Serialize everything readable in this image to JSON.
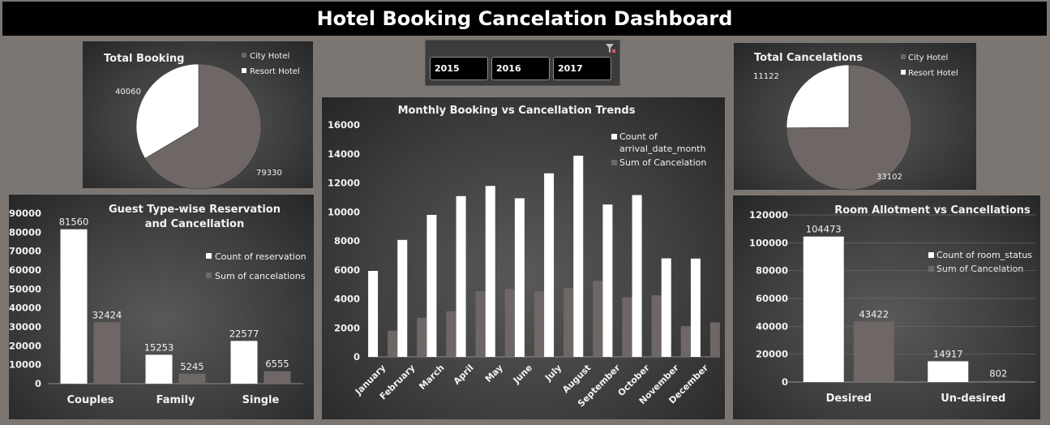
{
  "title": "Hotel Booking Cancelation Dashboard",
  "slicer": {
    "options": [
      "2015",
      "2016",
      "2017"
    ],
    "icon": "clear-filter-icon"
  },
  "colors": {
    "white": "#ffffff",
    "gray": "#6f6766",
    "panel": "#3f3f3f"
  },
  "chart_data": [
    {
      "id": "total_booking",
      "type": "pie",
      "title": "Total Booking",
      "labels": [
        "City Hotel",
        "Resort Hotel"
      ],
      "values": [
        79330,
        40060
      ],
      "colors": [
        "#6f6766",
        "#ffffff"
      ],
      "value_labels": [
        "79330",
        "40060"
      ],
      "legend": "top-right"
    },
    {
      "id": "total_cancelations",
      "type": "pie",
      "title": "Total Cancelations",
      "labels": [
        "City Hotel",
        "Resort Hotel"
      ],
      "values": [
        33102,
        11122
      ],
      "colors": [
        "#6f6766",
        "#ffffff"
      ],
      "value_labels": [
        "33102",
        "11122"
      ],
      "legend": "top-right"
    },
    {
      "id": "guest_type",
      "type": "bar",
      "title": [
        "Guest Type-wise Reservation",
        "and Cancellation"
      ],
      "categories": [
        "Couples",
        "Family",
        "Single"
      ],
      "series": [
        {
          "name": "Count of reservation",
          "values": [
            81560,
            15253,
            22577
          ],
          "color": "#ffffff"
        },
        {
          "name": "Sum of cancelations",
          "values": [
            32424,
            5245,
            6555
          ],
          "color": "#6f6766"
        }
      ],
      "yticks": [
        "0",
        "10000",
        "20000",
        "30000",
        "40000",
        "50000",
        "60000",
        "70000",
        "80000",
        "90000"
      ],
      "ylim": [
        0,
        90000
      ],
      "grid": false,
      "legend": "right"
    },
    {
      "id": "monthly",
      "type": "bar",
      "title": "Monthly Booking vs Cancellation Trends",
      "categories": [
        "January",
        "February",
        "March",
        "April",
        "May",
        "June",
        "July",
        "August",
        "September",
        "October",
        "November",
        "December"
      ],
      "series": [
        {
          "name": "Count of arrival_date_month",
          "name_lines": [
            "Count of",
            "arrival_date_month"
          ],
          "values": [
            5929,
            8068,
            9794,
            11089,
            11791,
            10939,
            12661,
            13877,
            10508,
            11160,
            6794,
            6780
          ],
          "color": "#ffffff"
        },
        {
          "name": "Sum of Cancelation",
          "values": [
            1807,
            2696,
            3149,
            4524,
            4677,
            4535,
            4742,
            5239,
            4116,
            4246,
            2122,
            2371
          ],
          "color": "#6f6766"
        }
      ],
      "yticks": [
        "0",
        "2000",
        "4000",
        "6000",
        "8000",
        "10000",
        "12000",
        "14000",
        "16000"
      ],
      "ylim": [
        0,
        16000
      ],
      "grid": false,
      "legend": "top-right"
    },
    {
      "id": "room_allotment",
      "type": "bar",
      "title": "Room Allotment vs Cancellations",
      "categories": [
        "Desired",
        "Un-desired"
      ],
      "series": [
        {
          "name": "Count of room_status",
          "values": [
            104473,
            14917
          ],
          "color": "#ffffff"
        },
        {
          "name": "Sum of Cancelation",
          "values": [
            43422,
            802
          ],
          "color": "#6f6766"
        }
      ],
      "yticks": [
        "0",
        "20000",
        "40000",
        "60000",
        "80000",
        "100000",
        "120000"
      ],
      "ylim": [
        0,
        120000
      ],
      "grid": true,
      "legend": "top-right"
    }
  ]
}
